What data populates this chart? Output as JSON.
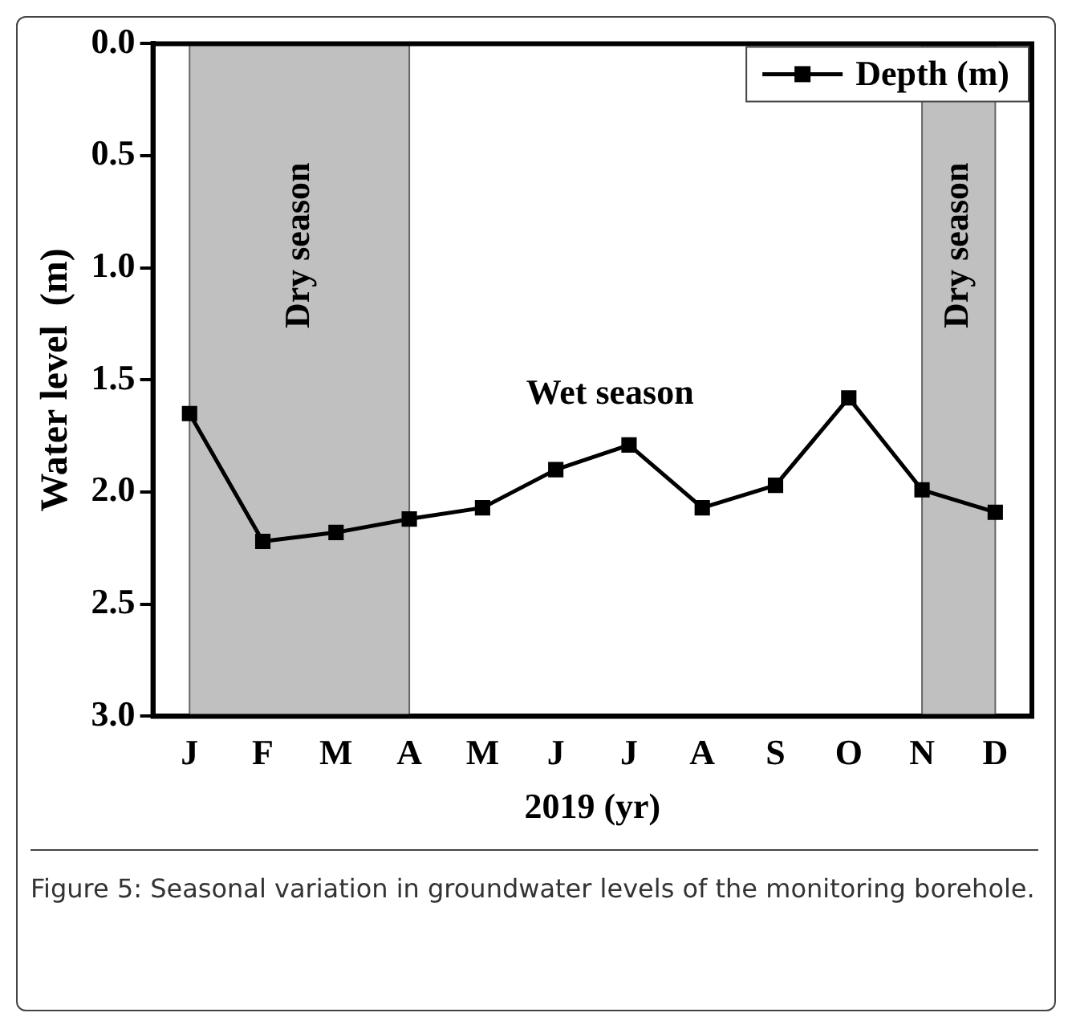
{
  "chart_data": {
    "type": "line",
    "xlabel": "2019 (yr)",
    "ylabel": "Water level  (m)",
    "categories": [
      "J",
      "F",
      "M",
      "A",
      "M",
      "J",
      "J",
      "A",
      "S",
      "O",
      "N",
      "D"
    ],
    "series": [
      {
        "name": "Depth (m)",
        "color": "#000000",
        "values": [
          1.65,
          2.22,
          2.18,
          2.12,
          2.07,
          1.9,
          1.79,
          2.07,
          1.97,
          1.58,
          1.99,
          2.09
        ]
      }
    ],
    "ylim": [
      3.0,
      0.0
    ],
    "yticks": [
      {
        "value": 0,
        "label": "0.0"
      },
      {
        "value": 0.5,
        "label": "0.5"
      },
      {
        "value": 1,
        "label": "1.0"
      },
      {
        "value": 1.5,
        "label": "1.5"
      },
      {
        "value": 2,
        "label": "2.0"
      },
      {
        "value": 2.5,
        "label": "2.5"
      },
      {
        "value": 3,
        "label": "3.0"
      }
    ],
    "bands": [
      {
        "axis": "x",
        "from": "J",
        "to": "A",
        "label": "Dry season",
        "color": "#c0c0c0"
      },
      {
        "axis": "x",
        "from": "N",
        "to": "D",
        "label": "Dry season",
        "color": "#c0c0c0"
      }
    ],
    "annotations": [
      "Wet season",
      "Figure 5: Seasonal variation in groundwater levels of the monitoring borehole."
    ],
    "legend": "top right",
    "marker": "square",
    "line_style": "solid",
    "grid": false
  }
}
